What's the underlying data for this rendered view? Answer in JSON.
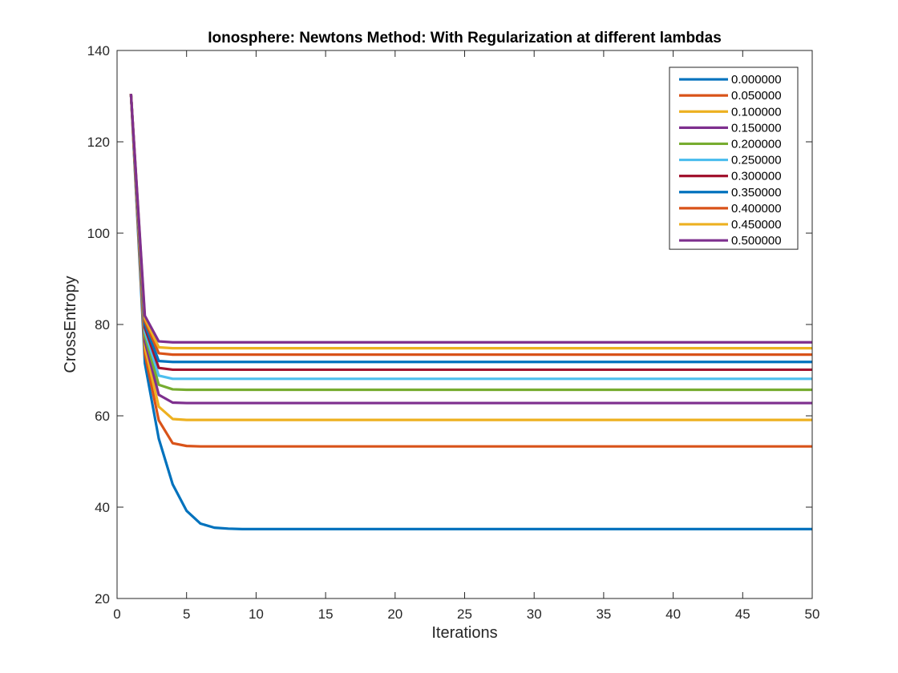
{
  "chart_data": {
    "type": "line",
    "title": "Ionosphere: Newtons Method: With Regularization at different lambdas",
    "xlabel": "Iterations",
    "ylabel": "CrossEntropy",
    "xlim": [
      0,
      50
    ],
    "ylim": [
      20,
      140
    ],
    "xticks": [
      0,
      5,
      10,
      15,
      20,
      25,
      30,
      35,
      40,
      45,
      50
    ],
    "yticks": [
      20,
      40,
      60,
      80,
      100,
      120,
      140
    ],
    "grid": false,
    "legend_position": "top-right",
    "x": [
      1,
      2,
      3,
      4,
      5,
      6,
      7,
      8,
      9,
      10,
      11,
      12,
      13,
      14,
      15,
      16,
      17,
      18,
      19,
      20,
      21,
      22,
      23,
      24,
      25,
      26,
      27,
      28,
      29,
      30,
      31,
      32,
      33,
      34,
      35,
      36,
      37,
      38,
      39,
      40,
      41,
      42,
      43,
      44,
      45,
      46,
      47,
      48,
      49,
      50
    ],
    "series": [
      {
        "name": "0.000000",
        "color": "#0072BD",
        "values": [
          130.5,
          71.5,
          55.0,
          45.0,
          39.2,
          36.4,
          35.5,
          35.3,
          35.2,
          35.2,
          35.2,
          35.2,
          35.2,
          35.2,
          35.2,
          35.2,
          35.2,
          35.2,
          35.2,
          35.2,
          35.2,
          35.2,
          35.2,
          35.2,
          35.2,
          35.2,
          35.2,
          35.2,
          35.2,
          35.2,
          35.2,
          35.2,
          35.2,
          35.2,
          35.2,
          35.2,
          35.2,
          35.2,
          35.2,
          35.2,
          35.2,
          35.2,
          35.2,
          35.2,
          35.2,
          35.2,
          35.2,
          35.2,
          35.2,
          35.2
        ]
      },
      {
        "name": "0.050000",
        "color": "#D95319",
        "values": [
          130.5,
          73.5,
          59.0,
          54.0,
          53.4,
          53.3,
          53.3,
          53.3,
          53.3,
          53.3,
          53.3,
          53.3,
          53.3,
          53.3,
          53.3,
          53.3,
          53.3,
          53.3,
          53.3,
          53.3,
          53.3,
          53.3,
          53.3,
          53.3,
          53.3,
          53.3,
          53.3,
          53.3,
          53.3,
          53.3,
          53.3,
          53.3,
          53.3,
          53.3,
          53.3,
          53.3,
          53.3,
          53.3,
          53.3,
          53.3,
          53.3,
          53.3,
          53.3,
          53.3,
          53.3,
          53.3,
          53.3,
          53.3,
          53.3,
          53.3
        ]
      },
      {
        "name": "0.100000",
        "color": "#EDB120",
        "values": [
          130.5,
          75.0,
          62.0,
          59.3,
          59.1,
          59.1,
          59.1,
          59.1,
          59.1,
          59.1,
          59.1,
          59.1,
          59.1,
          59.1,
          59.1,
          59.1,
          59.1,
          59.1,
          59.1,
          59.1,
          59.1,
          59.1,
          59.1,
          59.1,
          59.1,
          59.1,
          59.1,
          59.1,
          59.1,
          59.1,
          59.1,
          59.1,
          59.1,
          59.1,
          59.1,
          59.1,
          59.1,
          59.1,
          59.1,
          59.1,
          59.1,
          59.1,
          59.1,
          59.1,
          59.1,
          59.1,
          59.1,
          59.1,
          59.1,
          59.1
        ]
      },
      {
        "name": "0.150000",
        "color": "#7E2F8E",
        "values": [
          130.5,
          76.3,
          64.6,
          62.9,
          62.8,
          62.8,
          62.8,
          62.8,
          62.8,
          62.8,
          62.8,
          62.8,
          62.8,
          62.8,
          62.8,
          62.8,
          62.8,
          62.8,
          62.8,
          62.8,
          62.8,
          62.8,
          62.8,
          62.8,
          62.8,
          62.8,
          62.8,
          62.8,
          62.8,
          62.8,
          62.8,
          62.8,
          62.8,
          62.8,
          62.8,
          62.8,
          62.8,
          62.8,
          62.8,
          62.8,
          62.8,
          62.8,
          62.8,
          62.8,
          62.8,
          62.8,
          62.8,
          62.8,
          62.8,
          62.8
        ]
      },
      {
        "name": "0.200000",
        "color": "#77AC30",
        "values": [
          130.5,
          77.4,
          66.8,
          65.8,
          65.7,
          65.7,
          65.7,
          65.7,
          65.7,
          65.7,
          65.7,
          65.7,
          65.7,
          65.7,
          65.7,
          65.7,
          65.7,
          65.7,
          65.7,
          65.7,
          65.7,
          65.7,
          65.7,
          65.7,
          65.7,
          65.7,
          65.7,
          65.7,
          65.7,
          65.7,
          65.7,
          65.7,
          65.7,
          65.7,
          65.7,
          65.7,
          65.7,
          65.7,
          65.7,
          65.7,
          65.7,
          65.7,
          65.7,
          65.7,
          65.7,
          65.7,
          65.7,
          65.7,
          65.7,
          65.7
        ]
      },
      {
        "name": "0.250000",
        "color": "#4DBEEE",
        "values": [
          130.5,
          78.4,
          68.8,
          68.1,
          68.1,
          68.1,
          68.1,
          68.1,
          68.1,
          68.1,
          68.1,
          68.1,
          68.1,
          68.1,
          68.1,
          68.1,
          68.1,
          68.1,
          68.1,
          68.1,
          68.1,
          68.1,
          68.1,
          68.1,
          68.1,
          68.1,
          68.1,
          68.1,
          68.1,
          68.1,
          68.1,
          68.1,
          68.1,
          68.1,
          68.1,
          68.1,
          68.1,
          68.1,
          68.1,
          68.1,
          68.1,
          68.1,
          68.1,
          68.1,
          68.1,
          68.1,
          68.1,
          68.1,
          68.1,
          68.1
        ]
      },
      {
        "name": "0.300000",
        "color": "#A2142F",
        "values": [
          130.5,
          79.3,
          70.5,
          70.1,
          70.1,
          70.1,
          70.1,
          70.1,
          70.1,
          70.1,
          70.1,
          70.1,
          70.1,
          70.1,
          70.1,
          70.1,
          70.1,
          70.1,
          70.1,
          70.1,
          70.1,
          70.1,
          70.1,
          70.1,
          70.1,
          70.1,
          70.1,
          70.1,
          70.1,
          70.1,
          70.1,
          70.1,
          70.1,
          70.1,
          70.1,
          70.1,
          70.1,
          70.1,
          70.1,
          70.1,
          70.1,
          70.1,
          70.1,
          70.1,
          70.1,
          70.1,
          70.1,
          70.1,
          70.1,
          70.1
        ]
      },
      {
        "name": "0.350000",
        "color": "#0072BD",
        "values": [
          130.5,
          80.0,
          72.0,
          71.8,
          71.8,
          71.8,
          71.8,
          71.8,
          71.8,
          71.8,
          71.8,
          71.8,
          71.8,
          71.8,
          71.8,
          71.8,
          71.8,
          71.8,
          71.8,
          71.8,
          71.8,
          71.8,
          71.8,
          71.8,
          71.8,
          71.8,
          71.8,
          71.8,
          71.8,
          71.8,
          71.8,
          71.8,
          71.8,
          71.8,
          71.8,
          71.8,
          71.8,
          71.8,
          71.8,
          71.8,
          71.8,
          71.8,
          71.8,
          71.8,
          71.8,
          71.8,
          71.8,
          71.8,
          71.8,
          71.8
        ]
      },
      {
        "name": "0.400000",
        "color": "#D95319",
        "values": [
          130.5,
          80.7,
          73.7,
          73.4,
          73.4,
          73.4,
          73.4,
          73.4,
          73.4,
          73.4,
          73.4,
          73.4,
          73.4,
          73.4,
          73.4,
          73.4,
          73.4,
          73.4,
          73.4,
          73.4,
          73.4,
          73.4,
          73.4,
          73.4,
          73.4,
          73.4,
          73.4,
          73.4,
          73.4,
          73.4,
          73.4,
          73.4,
          73.4,
          73.4,
          73.4,
          73.4,
          73.4,
          73.4,
          73.4,
          73.4,
          73.4,
          73.4,
          73.4,
          73.4,
          73.4,
          73.4,
          73.4,
          73.4,
          73.4,
          73.4
        ]
      },
      {
        "name": "0.450000",
        "color": "#EDB120",
        "values": [
          130.5,
          81.3,
          75.0,
          74.8,
          74.8,
          74.8,
          74.8,
          74.8,
          74.8,
          74.8,
          74.8,
          74.8,
          74.8,
          74.8,
          74.8,
          74.8,
          74.8,
          74.8,
          74.8,
          74.8,
          74.8,
          74.8,
          74.8,
          74.8,
          74.8,
          74.8,
          74.8,
          74.8,
          74.8,
          74.8,
          74.8,
          74.8,
          74.8,
          74.8,
          74.8,
          74.8,
          74.8,
          74.8,
          74.8,
          74.8,
          74.8,
          74.8,
          74.8,
          74.8,
          74.8,
          74.8,
          74.8,
          74.8,
          74.8,
          74.8
        ]
      },
      {
        "name": "0.500000",
        "color": "#7E2F8E",
        "values": [
          130.5,
          81.9,
          76.3,
          76.1,
          76.1,
          76.1,
          76.1,
          76.1,
          76.1,
          76.1,
          76.1,
          76.1,
          76.1,
          76.1,
          76.1,
          76.1,
          76.1,
          76.1,
          76.1,
          76.1,
          76.1,
          76.1,
          76.1,
          76.1,
          76.1,
          76.1,
          76.1,
          76.1,
          76.1,
          76.1,
          76.1,
          76.1,
          76.1,
          76.1,
          76.1,
          76.1,
          76.1,
          76.1,
          76.1,
          76.1,
          76.1,
          76.1,
          76.1,
          76.1,
          76.1,
          76.1,
          76.1,
          76.1,
          76.1,
          76.1
        ]
      }
    ]
  }
}
